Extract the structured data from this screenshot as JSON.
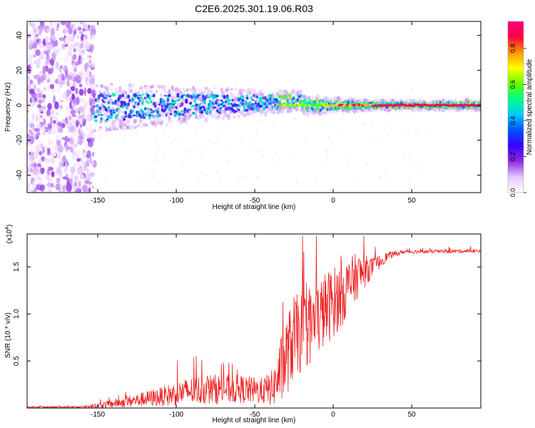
{
  "title": "C2E6.2025.301.19.06.R03",
  "chart_data": [
    {
      "type": "heatmap",
      "title": "C2E6.2025.301.19.06.R03",
      "xlabel": "Height of straight line (km)",
      "ylabel": "Frequency (Hz)",
      "xlim": [
        -195,
        94
      ],
      "ylim": [
        -50,
        48
      ],
      "xticks": [
        -150,
        -100,
        -50,
        0,
        50
      ],
      "xtick_labels": [
        "-150",
        "-100",
        "-50",
        "0",
        "50"
      ],
      "yticks": [
        -40,
        -20,
        0,
        20,
        40
      ],
      "ytick_labels": [
        "-40",
        "-20",
        "0",
        "20",
        "40"
      ],
      "colorbar": {
        "label": "Normalized spectral amplitude",
        "range": [
          0.0,
          0.95
        ],
        "ticks": [
          0.0,
          0.2,
          0.4,
          0.6,
          0.8
        ],
        "tick_labels": [
          "0.0",
          "0.2",
          "0.4",
          "0.6",
          "0.8"
        ],
        "colors": [
          "#ffffff",
          "#e6c8ff",
          "#8a2be2",
          "#3a00ff",
          "#0050ff",
          "#00c8ff",
          "#00ff8c",
          "#64ff00",
          "#ffff00",
          "#ff9600",
          "#ff0040",
          "#ff0080"
        ]
      },
      "band": {
        "noise_region_x": [
          -195,
          -152
        ],
        "band_start_x": -152,
        "band_center_hz": 0,
        "band_halfwidth_hz_start": 10,
        "band_halfwidth_hz_end": 2,
        "peak_line_start_x": -35
      }
    },
    {
      "type": "line",
      "xlabel": "Height of straight line (km)",
      "ylabel": "SNR (10 * v/v)",
      "scale_label": "(x10^4)",
      "scale_base": "(x10",
      "scale_exp": "4",
      "xlim": [
        -195,
        94
      ],
      "ylim": [
        0,
        1.85
      ],
      "xticks": [
        -150,
        -100,
        -50,
        0,
        50
      ],
      "xtick_labels": [
        "-150",
        "-100",
        "-50",
        "0",
        "50"
      ],
      "yticks": [
        0.5,
        1.0,
        1.5
      ],
      "ytick_labels": [
        "0.5",
        "1.0",
        "1.5"
      ],
      "line_color": "#ee2222",
      "series": [
        {
          "name": "SNR",
          "envelope": [
            {
              "x": -195,
              "base": 0.01,
              "spread": 0.01
            },
            {
              "x": -160,
              "base": 0.01,
              "spread": 0.01
            },
            {
              "x": -148,
              "base": 0.03,
              "spread": 0.03
            },
            {
              "x": -130,
              "base": 0.07,
              "spread": 0.06
            },
            {
              "x": -110,
              "base": 0.12,
              "spread": 0.1
            },
            {
              "x": -95,
              "base": 0.17,
              "spread": 0.14
            },
            {
              "x": -80,
              "base": 0.2,
              "spread": 0.16
            },
            {
              "x": -60,
              "base": 0.2,
              "spread": 0.15
            },
            {
              "x": -45,
              "base": 0.18,
              "spread": 0.14
            },
            {
              "x": -38,
              "base": 0.22,
              "spread": 0.2
            },
            {
              "x": -32,
              "base": 0.45,
              "spread": 0.4
            },
            {
              "x": -25,
              "base": 0.75,
              "spread": 0.45
            },
            {
              "x": -15,
              "base": 0.85,
              "spread": 0.4
            },
            {
              "x": -5,
              "base": 1.05,
              "spread": 0.4
            },
            {
              "x": 5,
              "base": 1.2,
              "spread": 0.35
            },
            {
              "x": 15,
              "base": 1.4,
              "spread": 0.25
            },
            {
              "x": 25,
              "base": 1.5,
              "spread": 0.1
            },
            {
              "x": 35,
              "base": 1.62,
              "spread": 0.04
            },
            {
              "x": 45,
              "base": 1.66,
              "spread": 0.02
            },
            {
              "x": 94,
              "base": 1.67,
              "spread": 0.02
            }
          ]
        }
      ]
    }
  ]
}
